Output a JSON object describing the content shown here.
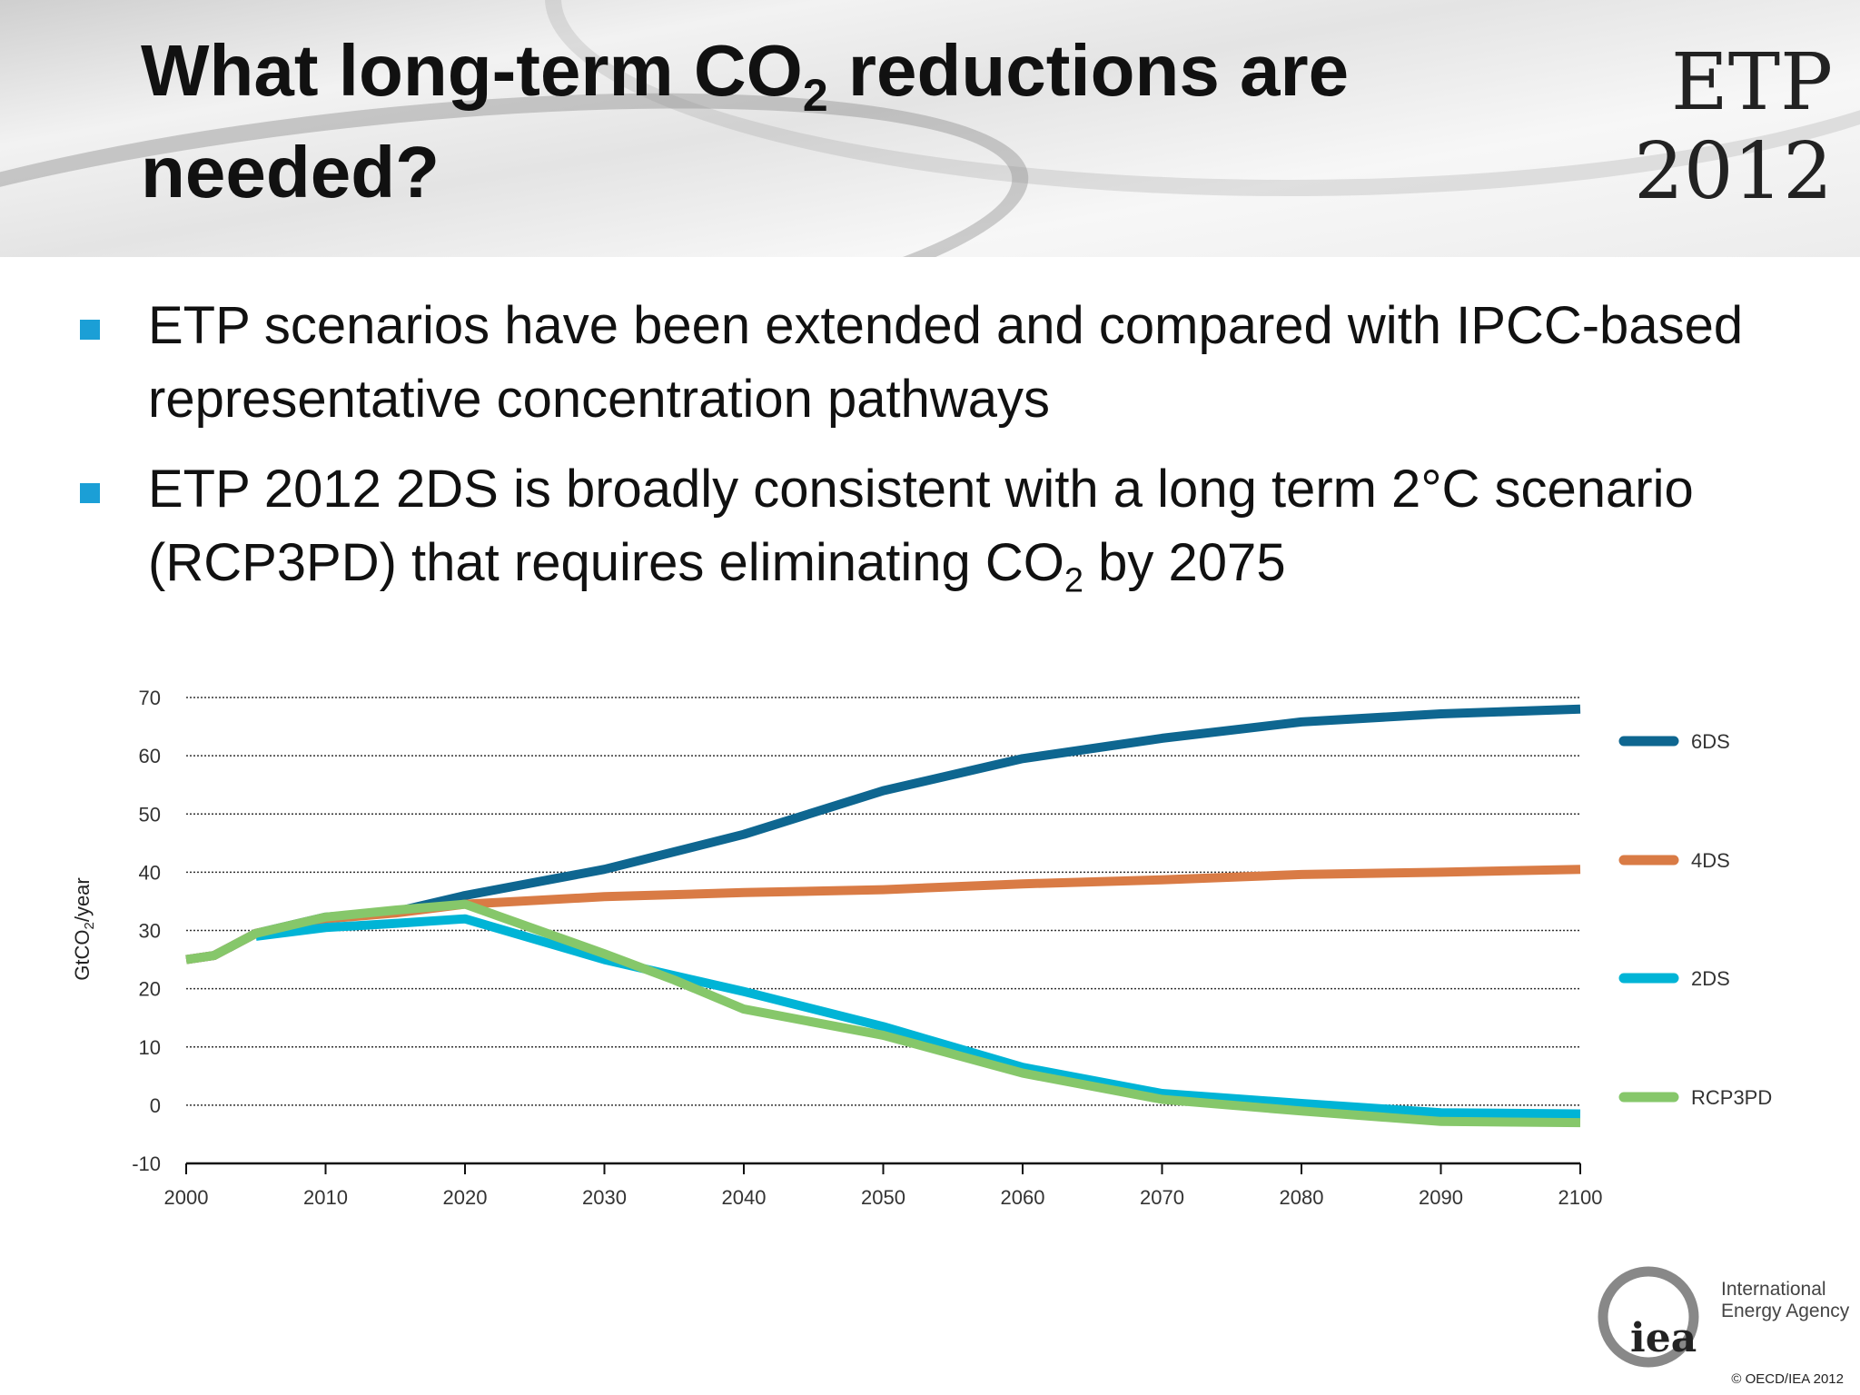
{
  "slide": {
    "title_part1": "What long-term CO",
    "title_sub": "2",
    "title_part2": " reductions are needed?",
    "badge_line1": "ETP",
    "badge_line2": "2012",
    "bullets": [
      {
        "text": "ETP scenarios have been extended and compared with IPCC-based representative concentration pathways"
      },
      {
        "text_part1": "ETP 2012 2DS is broadly consistent with a long term 2°C scenario (RCP3PD) that requires eliminating CO",
        "text_sub": "2",
        "text_part2": " by 2075"
      }
    ],
    "bullet_color": "#1b9fd6",
    "logo_text": "iea",
    "logo_name_line1": "International",
    "logo_name_line2": "Energy Agency",
    "copyright": "© OECD/IEA 2012"
  },
  "chart_data": {
    "type": "line",
    "ylabel": "GtCO2/year",
    "ylabel_main": "GtCO",
    "ylabel_sub": "2",
    "ylabel_tail": "/year",
    "xlim": [
      2000,
      2100
    ],
    "ylim": [
      -10,
      70
    ],
    "xticks": [
      "2000",
      "2010",
      "2020",
      "2030",
      "2040",
      "2050",
      "2060",
      "2070",
      "2080",
      "2090",
      "2100"
    ],
    "yticks": [
      "70",
      "60",
      "50",
      "40",
      "30",
      "20",
      "10",
      "0",
      "-10"
    ],
    "grid": "horizontal dotted",
    "legend_placement": "right",
    "series": [
      {
        "name": "6DS",
        "color": "#0e6690",
        "x": [
          2000,
          2002,
          2005,
          2010,
          2015,
          2020,
          2030,
          2040,
          2050,
          2060,
          2070,
          2080,
          2090,
          2100
        ],
        "y": [
          25,
          25.7,
          29.5,
          32.3,
          33.2,
          36,
          40.5,
          46.5,
          54,
          59.5,
          63,
          65.8,
          67.2,
          68
        ]
      },
      {
        "name": "4DS",
        "color": "#d97b45",
        "x": [
          2000,
          2002,
          2005,
          2010,
          2015,
          2020,
          2030,
          2040,
          2050,
          2060,
          2070,
          2080,
          2090,
          2100
        ],
        "y": [
          25,
          25.7,
          29.5,
          32,
          33,
          34.5,
          35.8,
          36.5,
          37,
          38,
          38.7,
          39.6,
          40,
          40.5
        ]
      },
      {
        "name": "2DS",
        "color": "#00b4d6",
        "x": [
          2005,
          2010,
          2015,
          2020,
          2030,
          2040,
          2050,
          2060,
          2070,
          2080,
          2090,
          2100
        ],
        "y": [
          29,
          30.5,
          31.2,
          32,
          25,
          19.5,
          13.5,
          6.5,
          2,
          0.3,
          -1.3,
          -1.5
        ]
      },
      {
        "name": "RCP3PD",
        "color": "#86c76a",
        "x": [
          2000,
          2002,
          2005,
          2010,
          2015,
          2020,
          2030,
          2035,
          2040,
          2050,
          2060,
          2070,
          2080,
          2090,
          2100
        ],
        "y": [
          25,
          25.7,
          29.5,
          32.3,
          33.5,
          34.5,
          26,
          21.5,
          16.5,
          12,
          5.5,
          1,
          -1,
          -2.8,
          -3
        ]
      }
    ]
  }
}
